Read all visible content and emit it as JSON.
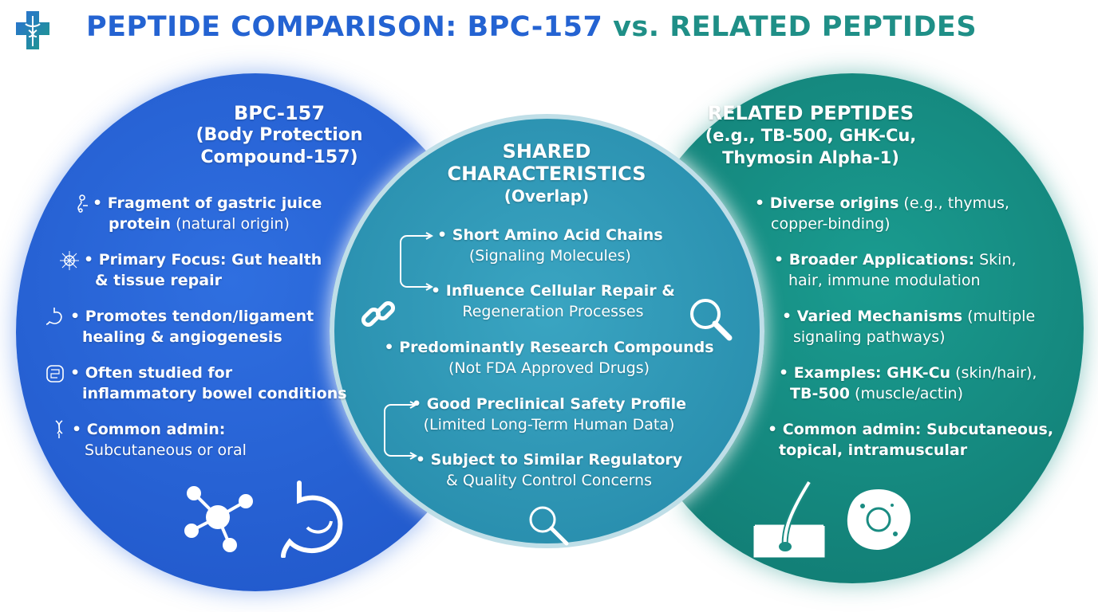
{
  "title": {
    "part1": "PEPTIDE COMPARISON: BPC-157",
    "part2": "vs. RELATED PEPTIDES"
  },
  "left": {
    "heading": [
      "BPC-157",
      "(Body Protection",
      "Compound-157)"
    ],
    "items": [
      {
        "bold": "• Fragment of gastric juice",
        "bold2": "protein",
        "regular": " (natural origin)",
        "icon": "molecule-chain-icon"
      },
      {
        "bold": "• Primary Focus: Gut health",
        "bold2": "& tissue repair",
        "regular": "",
        "icon": "network-cell-icon"
      },
      {
        "bold": "• Promotes tendon/ligament",
        "bold2": "healing & angiogenesis",
        "regular": "",
        "icon": "stomach-icon"
      },
      {
        "bold": "• Often studied for",
        "bold2": "inflammatory bowel conditions",
        "regular": "",
        "icon": "intestine-icon"
      },
      {
        "bold": "• Common admin:",
        "bold2": "",
        "regular": "Subcutaneous or oral",
        "icon": "dna-icon"
      }
    ]
  },
  "middle": {
    "heading": [
      "SHARED",
      "CHARACTERISTICS",
      "(Overlap)"
    ],
    "items": [
      {
        "bold": "• Short Amino Acid Chains",
        "regular": "(Signaling Molecules)"
      },
      {
        "bold": "• Influence Cellular Repair &",
        "regular": "Regeneration Processes"
      },
      {
        "bold": "• Predominantly Research Compounds",
        "regular": "(Not FDA Approved Drugs)"
      },
      {
        "bold": "• Good Preclinical Safety Profile",
        "regular": "(Limited Long-Term Human Data)"
      },
      {
        "bold": "• Subject to Similar Regulatory",
        "regular": "& Quality Control Concerns"
      }
    ]
  },
  "right": {
    "heading": [
      "RELATED PEPTIDES",
      "(e.g., TB-500, GHK-Cu,",
      "Thymosin Alpha-1)"
    ],
    "items": [
      {
        "bold": "• Diverse origins",
        "regular": " (e.g., thymus,",
        "line2": "copper-binding)"
      },
      {
        "bold": "• Broader Applications:",
        "regular": " Skin,",
        "line2": "hair, immune modulation"
      },
      {
        "bold": "• Varied Mechanisms",
        "regular": " (multiple",
        "line2": "signaling pathways)"
      },
      {
        "bold": "• Examples: GHK-Cu",
        "regular": " (skin/hair),",
        "line2b": "TB-500",
        "line2": " (muscle/actin)"
      },
      {
        "bold": "• Common admin: Subcutaneous,",
        "regular": "",
        "line2b": "topical, intramuscular",
        "line2": ""
      }
    ]
  },
  "colors": {
    "blue": "#2463d2",
    "teal": "#1f8f87",
    "mid": "#2d96b5"
  }
}
